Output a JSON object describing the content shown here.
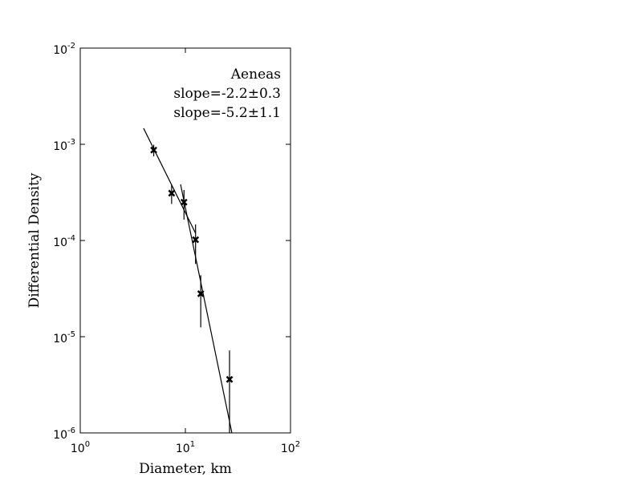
{
  "chart_data": {
    "type": "scatter",
    "xlabel": "Diameter, km",
    "ylabel": "Differential Density",
    "xscale": "log",
    "yscale": "log",
    "xlim": [
      1,
      100
    ],
    "ylim": [
      1e-06,
      0.01
    ],
    "xticks": [
      {
        "value": 1,
        "label": "10^0"
      },
      {
        "value": 10,
        "label": "10^1"
      },
      {
        "value": 100,
        "label": "10^2"
      }
    ],
    "yticks": [
      {
        "value": 1e-06,
        "label": "10^-6"
      },
      {
        "value": 1e-05,
        "label": "10^-5"
      },
      {
        "value": 0.0001,
        "label": "10^-4"
      },
      {
        "value": 0.001,
        "label": "10^-3"
      },
      {
        "value": 0.01,
        "label": "10^-2"
      }
    ],
    "color": "#000000",
    "x": [
      5.0,
      7.4,
      9.7,
      12.5,
      14.0,
      26.3
    ],
    "values": [
      0.00087,
      0.00031,
      0.00025,
      0.000102,
      2.8e-05,
      3.6e-06
    ],
    "errors": [
      0.00012,
      7e-05,
      8.5e-05,
      4.5e-05,
      1.55e-05,
      3.6e-06
    ],
    "lines": [
      {
        "x": [
          4.0,
          12.5
        ],
        "values": [
          0.00147,
          0.000119
        ]
      },
      {
        "x": [
          9.0,
          27.7
        ],
        "values": [
          0.000383,
          1e-06
        ]
      }
    ],
    "annotations": [
      "Aeneas",
      "slope=-2.2±0.3",
      "slope=-5.2±1.1"
    ]
  }
}
